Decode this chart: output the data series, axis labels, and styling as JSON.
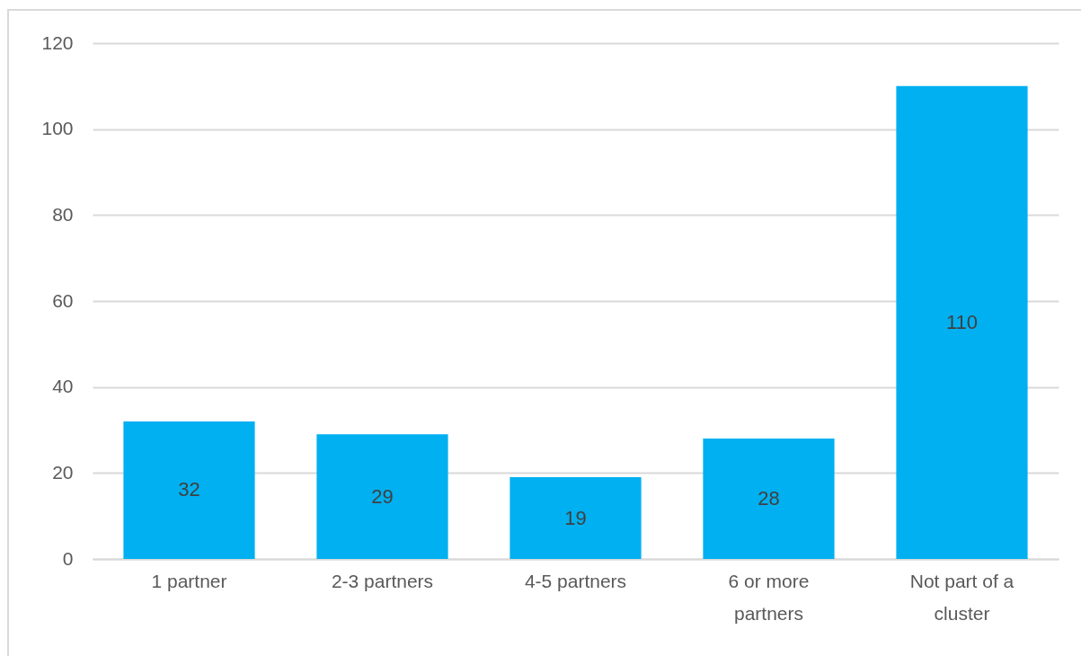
{
  "chart_data": {
    "type": "bar",
    "categories": [
      "1 partner",
      "2-3 partners",
      "4-5 partners",
      "6 or more partners",
      "Not part of a cluster"
    ],
    "values": [
      32,
      29,
      19,
      28,
      110
    ],
    "color": "#00b0f0",
    "ylim": [
      0,
      120
    ],
    "yticks": [
      0,
      20,
      40,
      60,
      80,
      100,
      120
    ],
    "grid": "y",
    "data_labels": true
  }
}
